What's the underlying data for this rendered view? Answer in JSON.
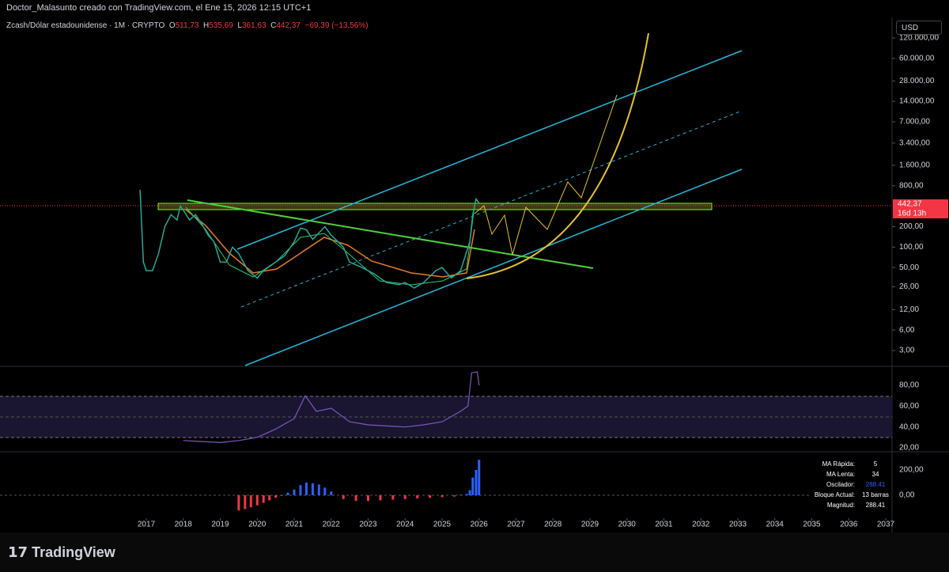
{
  "header": {
    "credit": "Doctor_Malasunto creado con TradingView.com, el Ene 15, 2026 12:15 UTC+1",
    "symbol": "Zcash/Dólar estadounidense · 1M · CRYPTO",
    "o_label": "O",
    "open": "511,73",
    "h_label": "H",
    "high": "535,69",
    "l_label": "L",
    "low": "361,63",
    "c_label": "C",
    "close": "442,37",
    "change": "−69,39 (−13,56%)",
    "currency": "USD"
  },
  "price_axis": {
    "log_scale": true,
    "ticks": [
      {
        "value": 120000,
        "label": "120.000,00"
      },
      {
        "value": 60000,
        "label": "60.000,00"
      },
      {
        "value": 28000,
        "label": "28.000,00"
      },
      {
        "value": 14000,
        "label": "14.000,00"
      },
      {
        "value": 7000,
        "label": "7.000,00"
      },
      {
        "value": 3400,
        "label": "3.400,00"
      },
      {
        "value": 1600,
        "label": "1.600,00"
      },
      {
        "value": 800,
        "label": "800,00"
      },
      {
        "value": 200,
        "label": "200,00"
      },
      {
        "value": 100,
        "label": "100,00"
      },
      {
        "value": 50,
        "label": "50,00"
      },
      {
        "value": 26,
        "label": "26,00"
      },
      {
        "value": 12,
        "label": "12,00"
      },
      {
        "value": 6,
        "label": "6,00"
      },
      {
        "value": 3,
        "label": "3,00"
      }
    ],
    "last_price": {
      "value": 442.37,
      "label": "442,37"
    },
    "countdown": "16d 13h"
  },
  "time_axis": {
    "ticks": [
      2017,
      2018,
      2019,
      2020,
      2021,
      2022,
      2023,
      2024,
      2025,
      2026,
      2027,
      2028,
      2029,
      2030,
      2031,
      2032,
      2033,
      2034,
      2035,
      2036,
      2037
    ]
  },
  "price_series": {
    "color": "#26a69a",
    "x": [
      2016.83,
      2016.92,
      2017.0,
      2017.17,
      2017.33,
      2017.5,
      2017.67,
      2017.83,
      2017.92,
      2018.0,
      2018.17,
      2018.33,
      2018.5,
      2018.67,
      2018.83,
      2019.0,
      2019.17,
      2019.33,
      2019.5,
      2019.75,
      2020.0,
      2020.17,
      2020.5,
      2020.75,
      2021.0,
      2021.17,
      2021.33,
      2021.5,
      2021.83,
      2022.0,
      2022.33,
      2022.5,
      2022.83,
      2023.17,
      2023.5,
      2023.83,
      2024.0,
      2024.25,
      2024.5,
      2024.83,
      2025.0,
      2025.25,
      2025.5,
      2025.75,
      2025.83,
      2025.92,
      2026.0
    ],
    "values": [
      700,
      60,
      45,
      45,
      80,
      200,
      300,
      250,
      400,
      350,
      250,
      300,
      220,
      150,
      120,
      60,
      60,
      100,
      80,
      45,
      35,
      45,
      60,
      75,
      120,
      190,
      180,
      130,
      200,
      150,
      100,
      60,
      50,
      40,
      30,
      28,
      30,
      25,
      30,
      45,
      50,
      35,
      45,
      120,
      300,
      511.73,
      442.37
    ]
  },
  "rsi": {
    "ticks": [
      {
        "value": 80,
        "label": "80,00"
      },
      {
        "value": 60,
        "label": "60,00"
      },
      {
        "value": 40,
        "label": "40,00"
      },
      {
        "value": 20,
        "label": "20,00"
      }
    ],
    "x": [
      2018.0,
      2019.0,
      2019.5,
      2020.0,
      2020.5,
      2021.0,
      2021.3,
      2021.6,
      2022.0,
      2022.5,
      2023.0,
      2023.5,
      2024.0,
      2024.5,
      2025.0,
      2025.5,
      2025.7,
      2025.8,
      2025.95,
      2026.0
    ],
    "values": [
      27,
      25,
      27,
      30,
      38,
      48,
      70,
      55,
      58,
      45,
      42,
      41,
      40,
      42,
      45,
      55,
      60,
      92,
      93,
      80
    ]
  },
  "macd": {
    "ticks": [
      {
        "value": 200,
        "label": "200,00"
      },
      {
        "value": 0,
        "label": "0,00"
      }
    ],
    "x": [
      2019.5,
      2019.67,
      2019.83,
      2020.0,
      2020.17,
      2020.33,
      2020.5,
      2020.67,
      2020.83,
      2021.0,
      2021.17,
      2021.33,
      2021.5,
      2021.67,
      2021.83,
      2022.0,
      2022.33,
      2022.67,
      2023.0,
      2023.33,
      2023.67,
      2024.0,
      2024.33,
      2024.67,
      2025.0,
      2025.33,
      2025.5,
      2025.67,
      2025.75,
      2025.83,
      2025.92,
      2026.0
    ],
    "values": [
      -120,
      -110,
      -95,
      -80,
      -60,
      -40,
      -20,
      -5,
      20,
      45,
      80,
      100,
      95,
      85,
      60,
      30,
      -30,
      -45,
      -45,
      -40,
      -35,
      -30,
      -25,
      -20,
      -15,
      -10,
      5,
      10,
      40,
      140,
      200,
      280
    ]
  },
  "table": {
    "rows": [
      [
        "MA Rápida:",
        "5"
      ],
      [
        "MA Lenta:",
        "34"
      ],
      [
        "Oscilador:",
        "288.41"
      ],
      [
        "Bloque Actual:",
        "13 barras"
      ],
      [
        "Magnitud:",
        "288.41"
      ]
    ]
  },
  "footer": {
    "brand": "TradingView"
  }
}
